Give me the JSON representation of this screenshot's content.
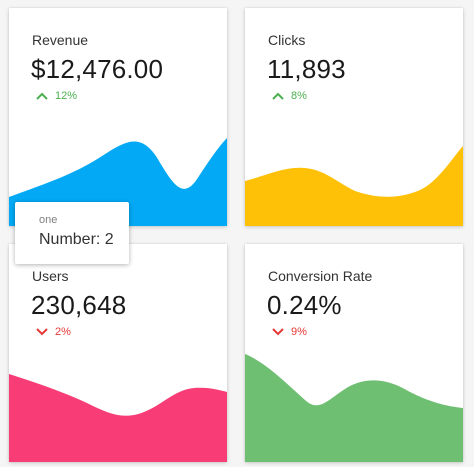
{
  "cards": [
    {
      "title": "Revenue",
      "value": "$12,476.00",
      "change": "12%",
      "direction": "up",
      "fill_color": "#03a9f4"
    },
    {
      "title": "Clicks",
      "value": "11,893",
      "change": "8%",
      "direction": "up",
      "fill_color": "#ffc107"
    },
    {
      "title": "Users",
      "value": "230,648",
      "change": "2%",
      "direction": "down",
      "fill_color": "#f73c76"
    },
    {
      "title": "Conversion Rate",
      "value": "0.24%",
      "change": "9%",
      "direction": "down",
      "fill_color": "#6fbf73"
    }
  ],
  "tooltip": {
    "series_label": "one",
    "value_text": "Number: 2"
  },
  "colors": {
    "up": "#4caf50",
    "down": "#e53935"
  }
}
